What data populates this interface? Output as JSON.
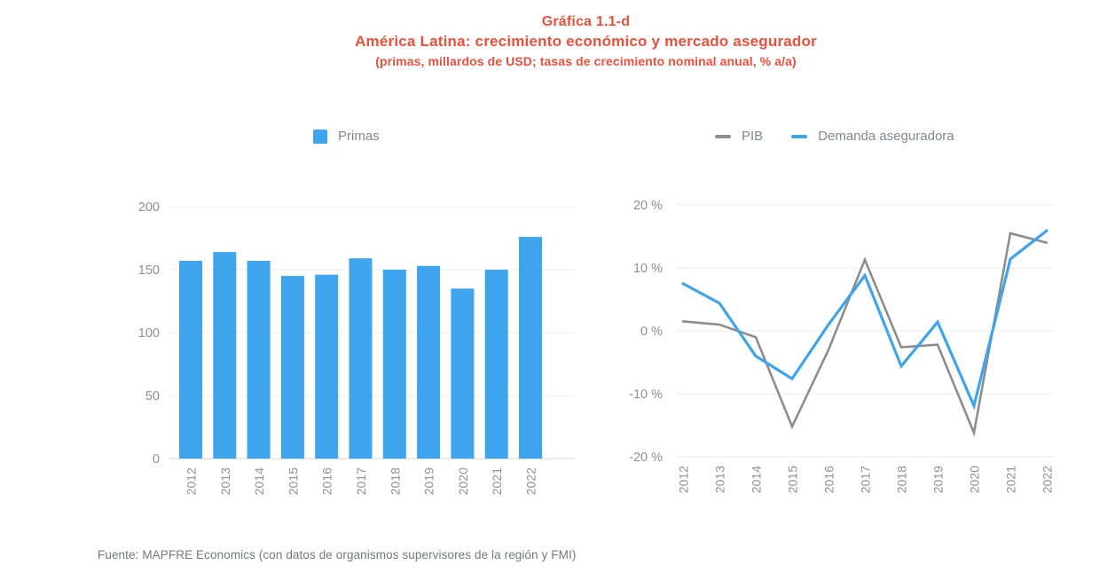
{
  "title": {
    "line1": "Gráfica 1.1-d",
    "line2": "América Latina: crecimiento económico y mercado asegurador",
    "line3": "(primas, millardos de USD; tasas de crecimiento nominal anual, % a/a)"
  },
  "legends": {
    "primas": "Primas",
    "pib": "PIB",
    "demanda": "Demanda aseguradora"
  },
  "source": "Fuente: MAPFRE Economics (con datos de organismos supervisores de la región y FMI)",
  "colors": {
    "title_red": "#EA503C",
    "bar_blue": "#3FA4EE",
    "line_blue": "#3FA4EE",
    "line_gray": "#8D8D8D",
    "axis_text": "#8F8F8F",
    "legend_text": "#83878E",
    "gridline": "#EBEBEB",
    "axis_line": "#D6D6D6",
    "source_text": "#75787B"
  },
  "chart_data": [
    {
      "type": "bar",
      "name": "primas",
      "title": "Primas",
      "categories": [
        "2012",
        "2013",
        "2014",
        "2015",
        "2016",
        "2017",
        "2018",
        "2019",
        "2020",
        "2021",
        "2022"
      ],
      "values": [
        157,
        164,
        157,
        145,
        146,
        159,
        150,
        153,
        135,
        150,
        176
      ],
      "ylabel": "primas, millardos de USD",
      "ylim": [
        0,
        200
      ],
      "yticks": [
        200,
        150,
        100,
        50,
        0
      ],
      "ytick_labels": [
        "200",
        "150",
        "100",
        "50",
        "0"
      ],
      "grid": true,
      "legend_position": "top-center"
    },
    {
      "type": "line",
      "name": "crecimiento",
      "categories": [
        "2012",
        "2013",
        "2014",
        "2015",
        "2016",
        "2017",
        "2018",
        "2019",
        "2020",
        "2021",
        "2022"
      ],
      "series": [
        {
          "name": "PIB",
          "color_key": "line_gray",
          "values": [
            1.5,
            1.0,
            -1.0,
            -15.2,
            -3.0,
            11.3,
            -2.6,
            -2.2,
            -16.2,
            15.5,
            14.0
          ]
        },
        {
          "name": "Demanda aseguradora",
          "color_key": "line_blue",
          "values": [
            7.5,
            4.4,
            -4.0,
            -7.6,
            1.0,
            8.8,
            -5.6,
            1.4,
            -11.9,
            11.4,
            15.9
          ]
        }
      ],
      "ylabel": "tasas de crecimiento nominal anual, % a/a",
      "ylim": [
        -20,
        20
      ],
      "yticks": [
        20,
        10,
        0,
        -10,
        -20
      ],
      "ytick_labels": [
        "20 %",
        "10 %",
        "0 %",
        "-10 %",
        "-20 %"
      ],
      "grid": true,
      "legend_position": "top-center"
    }
  ]
}
